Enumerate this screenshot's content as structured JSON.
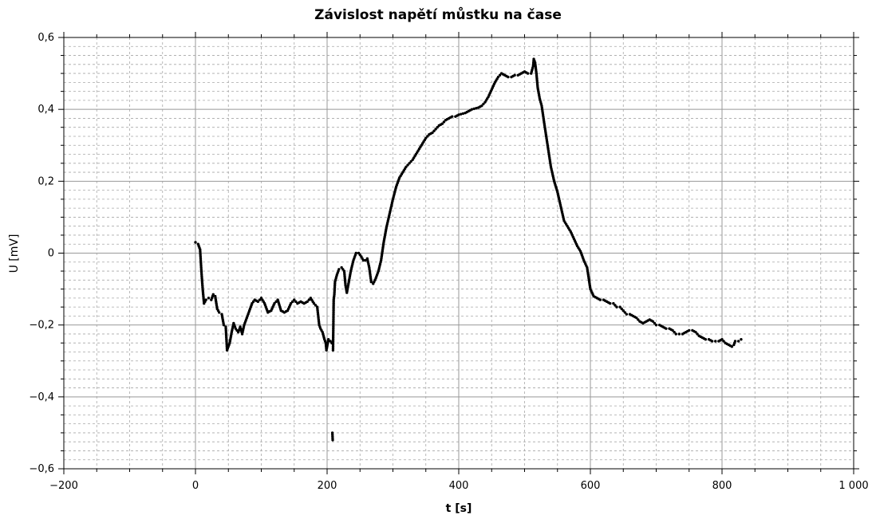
{
  "chart_data": {
    "type": "scatter",
    "title": "Závislost napětí můstku na čase",
    "xlabel": "t [s]",
    "ylabel": "U [mV]",
    "xlim": [
      -200,
      1000
    ],
    "ylim": [
      -0.6,
      0.6
    ],
    "x_major_ticks": [
      -200,
      0,
      200,
      400,
      600,
      800,
      1000
    ],
    "x_tick_labels": [
      "−200",
      "0",
      "200",
      "400",
      "600",
      "800",
      "1 000"
    ],
    "y_major_ticks": [
      -0.6,
      -0.4,
      -0.2,
      0,
      0.2,
      0.4,
      0.6
    ],
    "y_tick_labels": [
      "−0,6",
      "−0,4",
      "−0,2",
      "0",
      "0,2",
      "0,4",
      "0,6"
    ],
    "grid": true,
    "marker_color": "#000000",
    "series": [
      {
        "points": [
          [
            0,
            0.03
          ],
          [
            4,
            0.025
          ],
          [
            7,
            0.01
          ],
          [
            9,
            -0.05
          ],
          [
            11,
            -0.1
          ],
          [
            13,
            -0.14
          ],
          [
            16,
            -0.13
          ],
          [
            20,
            -0.125
          ],
          [
            24,
            -0.13
          ],
          [
            27,
            -0.115
          ],
          [
            30,
            -0.12
          ],
          [
            33,
            -0.155
          ],
          [
            36,
            -0.165
          ],
          [
            40,
            -0.17
          ],
          [
            43,
            -0.2
          ],
          [
            46,
            -0.205
          ],
          [
            48,
            -0.27
          ],
          [
            52,
            -0.25
          ],
          [
            55,
            -0.22
          ],
          [
            58,
            -0.195
          ],
          [
            61,
            -0.21
          ],
          [
            65,
            -0.22
          ],
          [
            68,
            -0.205
          ],
          [
            71,
            -0.225
          ],
          [
            74,
            -0.2
          ],
          [
            78,
            -0.18
          ],
          [
            82,
            -0.16
          ],
          [
            86,
            -0.14
          ],
          [
            90,
            -0.13
          ],
          [
            95,
            -0.135
          ],
          [
            100,
            -0.125
          ],
          [
            105,
            -0.14
          ],
          [
            110,
            -0.165
          ],
          [
            115,
            -0.16
          ],
          [
            120,
            -0.14
          ],
          [
            125,
            -0.13
          ],
          [
            130,
            -0.16
          ],
          [
            135,
            -0.165
          ],
          [
            140,
            -0.16
          ],
          [
            145,
            -0.14
          ],
          [
            150,
            -0.13
          ],
          [
            155,
            -0.14
          ],
          [
            160,
            -0.135
          ],
          [
            165,
            -0.14
          ],
          [
            170,
            -0.135
          ],
          [
            175,
            -0.125
          ],
          [
            180,
            -0.14
          ],
          [
            185,
            -0.15
          ],
          [
            188,
            -0.2
          ],
          [
            190,
            -0.21
          ],
          [
            193,
            -0.22
          ],
          [
            196,
            -0.24
          ],
          [
            198,
            -0.25
          ],
          [
            199,
            -0.27
          ],
          [
            202,
            -0.24
          ],
          [
            205,
            -0.245
          ],
          [
            207,
            -0.25
          ],
          [
            208,
            -0.5
          ],
          [
            208.5,
            -0.52
          ],
          [
            209,
            -0.27
          ],
          [
            210,
            -0.13
          ],
          [
            211,
            -0.115
          ],
          [
            212,
            -0.08
          ],
          [
            215,
            -0.06
          ],
          [
            218,
            -0.045
          ],
          [
            222,
            -0.04
          ],
          [
            226,
            -0.05
          ],
          [
            228,
            -0.09
          ],
          [
            230,
            -0.11
          ],
          [
            233,
            -0.08
          ],
          [
            236,
            -0.05
          ],
          [
            240,
            -0.02
          ],
          [
            244,
            0
          ],
          [
            248,
            0
          ],
          [
            252,
            -0.01
          ],
          [
            255,
            -0.02
          ],
          [
            258,
            -0.02
          ],
          [
            261,
            -0.015
          ],
          [
            264,
            -0.04
          ],
          [
            267,
            -0.08
          ],
          [
            270,
            -0.085
          ],
          [
            274,
            -0.07
          ],
          [
            278,
            -0.05
          ],
          [
            282,
            -0.02
          ],
          [
            286,
            0.03
          ],
          [
            290,
            0.07
          ],
          [
            295,
            0.11
          ],
          [
            300,
            0.15
          ],
          [
            305,
            0.185
          ],
          [
            310,
            0.21
          ],
          [
            315,
            0.225
          ],
          [
            320,
            0.24
          ],
          [
            325,
            0.25
          ],
          [
            330,
            0.26
          ],
          [
            335,
            0.275
          ],
          [
            340,
            0.29
          ],
          [
            345,
            0.305
          ],
          [
            350,
            0.32
          ],
          [
            355,
            0.33
          ],
          [
            360,
            0.335
          ],
          [
            365,
            0.345
          ],
          [
            370,
            0.355
          ],
          [
            375,
            0.36
          ],
          [
            380,
            0.37
          ],
          [
            385,
            0.375
          ],
          [
            390,
            0.38
          ],
          [
            395,
            0.38
          ],
          [
            400,
            0.385
          ],
          [
            410,
            0.39
          ],
          [
            420,
            0.4
          ],
          [
            430,
            0.405
          ],
          [
            435,
            0.41
          ],
          [
            440,
            0.42
          ],
          [
            445,
            0.435
          ],
          [
            450,
            0.455
          ],
          [
            455,
            0.475
          ],
          [
            460,
            0.49
          ],
          [
            465,
            0.5
          ],
          [
            470,
            0.495
          ],
          [
            475,
            0.49
          ],
          [
            480,
            0.49
          ],
          [
            485,
            0.495
          ],
          [
            490,
            0.495
          ],
          [
            495,
            0.5
          ],
          [
            500,
            0.505
          ],
          [
            505,
            0.5
          ],
          [
            510,
            0.5
          ],
          [
            513,
            0.52
          ],
          [
            514,
            0.54
          ],
          [
            516,
            0.53
          ],
          [
            518,
            0.5
          ],
          [
            520,
            0.46
          ],
          [
            523,
            0.43
          ],
          [
            526,
            0.41
          ],
          [
            530,
            0.36
          ],
          [
            535,
            0.3
          ],
          [
            540,
            0.24
          ],
          [
            545,
            0.2
          ],
          [
            550,
            0.17
          ],
          [
            555,
            0.13
          ],
          [
            560,
            0.09
          ],
          [
            565,
            0.075
          ],
          [
            570,
            0.06
          ],
          [
            575,
            0.04
          ],
          [
            580,
            0.02
          ],
          [
            585,
            0.005
          ],
          [
            590,
            -0.02
          ],
          [
            595,
            -0.04
          ],
          [
            600,
            -0.1
          ],
          [
            605,
            -0.12
          ],
          [
            610,
            -0.125
          ],
          [
            615,
            -0.13
          ],
          [
            620,
            -0.13
          ],
          [
            625,
            -0.135
          ],
          [
            630,
            -0.14
          ],
          [
            635,
            -0.14
          ],
          [
            640,
            -0.15
          ],
          [
            645,
            -0.15
          ],
          [
            650,
            -0.16
          ],
          [
            655,
            -0.17
          ],
          [
            660,
            -0.17
          ],
          [
            665,
            -0.175
          ],
          [
            670,
            -0.18
          ],
          [
            675,
            -0.19
          ],
          [
            680,
            -0.195
          ],
          [
            685,
            -0.19
          ],
          [
            690,
            -0.185
          ],
          [
            695,
            -0.19
          ],
          [
            700,
            -0.2
          ],
          [
            705,
            -0.2
          ],
          [
            710,
            -0.205
          ],
          [
            715,
            -0.21
          ],
          [
            720,
            -0.21
          ],
          [
            725,
            -0.215
          ],
          [
            730,
            -0.225
          ],
          [
            735,
            -0.225
          ],
          [
            740,
            -0.225
          ],
          [
            745,
            -0.22
          ],
          [
            750,
            -0.215
          ],
          [
            755,
            -0.215
          ],
          [
            760,
            -0.22
          ],
          [
            765,
            -0.23
          ],
          [
            770,
            -0.235
          ],
          [
            775,
            -0.24
          ],
          [
            780,
            -0.24
          ],
          [
            785,
            -0.245
          ],
          [
            790,
            -0.245
          ],
          [
            795,
            -0.245
          ],
          [
            800,
            -0.24
          ],
          [
            805,
            -0.25
          ],
          [
            810,
            -0.255
          ],
          [
            815,
            -0.26
          ],
          [
            818,
            -0.255
          ],
          [
            820,
            -0.245
          ],
          [
            825,
            -0.245
          ],
          [
            829,
            -0.24
          ]
        ]
      }
    ]
  }
}
